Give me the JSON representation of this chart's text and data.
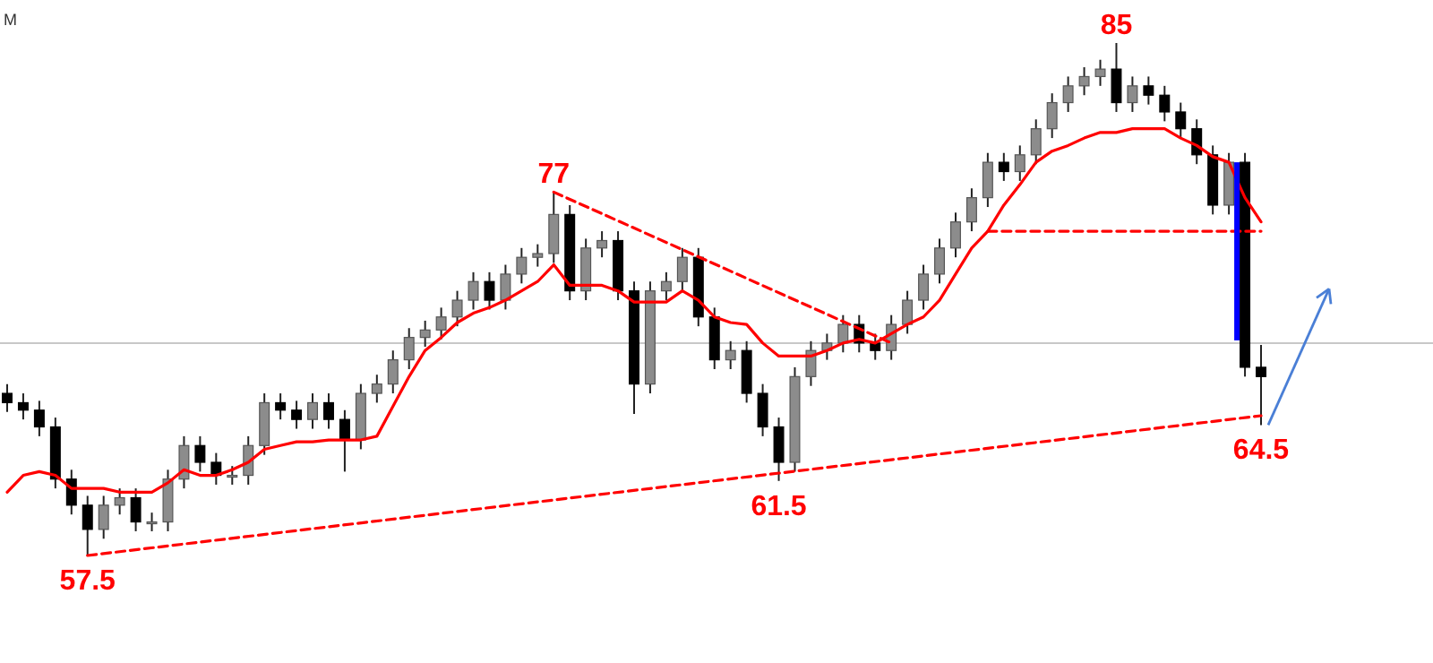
{
  "chart_data": {
    "type": "candlestick",
    "categories": [
      null,
      null,
      null,
      null,
      null,
      null,
      null,
      null,
      null,
      null,
      null,
      null,
      null,
      null,
      null,
      null,
      null,
      null,
      null,
      null,
      null,
      null,
      null,
      null,
      null,
      null,
      null,
      null,
      null,
      null,
      null,
      null,
      null,
      null,
      null,
      null,
      null,
      null,
      null,
      null,
      null,
      null,
      null,
      null,
      null,
      null,
      null,
      null,
      null,
      null,
      null,
      null,
      null,
      null,
      null,
      null,
      null,
      null,
      null,
      null,
      null,
      null,
      null,
      null,
      null,
      null,
      null,
      null,
      null,
      null,
      null,
      null,
      null,
      null,
      null,
      null,
      null,
      null,
      null
    ],
    "ohlc": [
      [
        66.2,
        66.7,
        65.2,
        65.7
      ],
      [
        65.7,
        66.2,
        64.8,
        65.3
      ],
      [
        65.3,
        65.8,
        63.9,
        64.4
      ],
      [
        64.4,
        64.9,
        61.1,
        61.6
      ],
      [
        61.6,
        62.1,
        59.7,
        60.2
      ],
      [
        60.2,
        60.7,
        57.5,
        58.9
      ],
      [
        58.9,
        60.7,
        58.4,
        60.2
      ],
      [
        60.2,
        61.1,
        59.7,
        60.6
      ],
      [
        60.6,
        61.1,
        58.8,
        59.3
      ],
      [
        59.3,
        59.8,
        58.8,
        59.3
      ],
      [
        59.3,
        62.1,
        58.8,
        61.6
      ],
      [
        61.6,
        63.9,
        61.1,
        63.4
      ],
      [
        63.4,
        63.9,
        62.0,
        62.5
      ],
      [
        62.5,
        63.0,
        61.3,
        61.8
      ],
      [
        61.8,
        62.3,
        61.3,
        61.8
      ],
      [
        61.8,
        63.9,
        61.3,
        63.4
      ],
      [
        63.4,
        66.2,
        62.9,
        65.7
      ],
      [
        65.7,
        66.2,
        64.8,
        65.3
      ],
      [
        65.3,
        65.8,
        64.3,
        64.8
      ],
      [
        64.8,
        66.2,
        64.3,
        65.7
      ],
      [
        65.7,
        66.2,
        64.3,
        64.8
      ],
      [
        64.8,
        65.3,
        62.0,
        63.7
      ],
      [
        63.7,
        66.7,
        63.2,
        66.2
      ],
      [
        66.2,
        67.2,
        65.7,
        66.7
      ],
      [
        66.7,
        68.5,
        66.2,
        68.0
      ],
      [
        68.0,
        69.7,
        67.5,
        69.2
      ],
      [
        69.2,
        70.1,
        68.7,
        69.6
      ],
      [
        69.6,
        70.8,
        69.1,
        70.3
      ],
      [
        70.3,
        71.7,
        69.8,
        71.2
      ],
      [
        71.2,
        72.7,
        70.7,
        72.2
      ],
      [
        72.2,
        72.7,
        70.7,
        71.2
      ],
      [
        71.2,
        73.1,
        70.7,
        72.6
      ],
      [
        72.6,
        74.0,
        72.1,
        73.5
      ],
      [
        73.5,
        74.2,
        73.0,
        73.7
      ],
      [
        73.7,
        77,
        73.2,
        75.8
      ],
      [
        75.8,
        76.3,
        71.2,
        71.7
      ],
      [
        71.7,
        74.5,
        71.2,
        74.0
      ],
      [
        74.0,
        74.9,
        73.5,
        74.4
      ],
      [
        74.4,
        74.9,
        71.2,
        71.7
      ],
      [
        71.7,
        72.2,
        65.1,
        66.7
      ],
      [
        66.7,
        72.2,
        66.2,
        71.7
      ],
      [
        71.7,
        72.7,
        71.2,
        72.2
      ],
      [
        72.2,
        74.0,
        71.7,
        73.5
      ],
      [
        73.5,
        74.0,
        69.8,
        70.3
      ],
      [
        70.3,
        70.8,
        67.5,
        68.0
      ],
      [
        68.0,
        69.0,
        67.5,
        68.5
      ],
      [
        68.5,
        69.0,
        65.7,
        66.2
      ],
      [
        66.2,
        66.7,
        63.9,
        64.4
      ],
      [
        64.4,
        64.9,
        61.5,
        62.5
      ],
      [
        62.5,
        67.6,
        62.0,
        67.1
      ],
      [
        67.1,
        69.0,
        66.6,
        68.5
      ],
      [
        68.5,
        69.4,
        68.0,
        68.9
      ],
      [
        68.9,
        70.4,
        68.4,
        69.9
      ],
      [
        69.9,
        70.4,
        68.4,
        68.9
      ],
      [
        68.9,
        69.4,
        68.0,
        68.5
      ],
      [
        68.5,
        70.4,
        68.0,
        69.9
      ],
      [
        69.9,
        71.7,
        69.4,
        71.2
      ],
      [
        71.2,
        73.1,
        70.7,
        72.6
      ],
      [
        72.6,
        74.5,
        72.1,
        74.0
      ],
      [
        74.0,
        75.9,
        73.5,
        75.4
      ],
      [
        75.4,
        77.2,
        74.9,
        76.7
      ],
      [
        76.7,
        79.1,
        76.2,
        78.6
      ],
      [
        78.6,
        79.1,
        77.6,
        78.1
      ],
      [
        78.1,
        79.5,
        77.6,
        79.0
      ],
      [
        79.0,
        80.9,
        78.5,
        80.4
      ],
      [
        80.4,
        82.3,
        79.9,
        81.8
      ],
      [
        81.8,
        83.2,
        81.3,
        82.7
      ],
      [
        82.7,
        83.7,
        82.2,
        83.2
      ],
      [
        83.2,
        84.1,
        82.7,
        83.6
      ],
      [
        83.6,
        85,
        81.3,
        81.8
      ],
      [
        81.8,
        83.2,
        81.3,
        82.7
      ],
      [
        82.7,
        83.2,
        81.7,
        82.2
      ],
      [
        82.2,
        82.7,
        80.8,
        81.3
      ],
      [
        81.3,
        81.8,
        79.9,
        80.4
      ],
      [
        80.4,
        80.9,
        78.5,
        79.0
      ],
      [
        79.0,
        79.5,
        75.8,
        76.3
      ],
      [
        76.3,
        79.1,
        75.8,
        78.6
      ],
      [
        78.6,
        79.1,
        67.1,
        67.6
      ],
      [
        67.6,
        68.8,
        64.5,
        67.1
      ]
    ],
    "series": [
      {
        "type": "line",
        "color": "#ff0000",
        "line_style": "solid",
        "values": [
          60.9,
          61.8,
          62.0,
          61.8,
          61.1,
          61.1,
          61.1,
          60.9,
          60.9,
          60.9,
          61.4,
          62.1,
          61.8,
          61.8,
          62.1,
          62.5,
          63.2,
          63.4,
          63.6,
          63.6,
          63.7,
          63.7,
          63.7,
          63.9,
          65.5,
          67.1,
          68.5,
          69.2,
          70.0,
          70.5,
          70.8,
          71.2,
          71.7,
          72.2,
          73.1,
          72.0,
          72.0,
          72.0,
          71.7,
          71.1,
          71.1,
          71.1,
          71.7,
          71.2,
          70.3,
          70.0,
          69.9,
          68.9,
          68.2,
          68.2,
          68.2,
          68.5,
          68.9,
          69.1,
          68.9,
          69.4,
          69.9,
          70.3,
          71.2,
          72.6,
          74.0,
          74.9,
          76.3,
          77.4,
          78.6,
          79.2,
          79.5,
          79.9,
          80.2,
          80.2,
          80.4,
          80.4,
          80.4,
          79.9,
          79.5,
          78.9,
          78.6,
          76.7,
          75.4
        ]
      },
      {
        "type": "line",
        "color": "#ff0000",
        "line_style": "dashed",
        "values": [
          null,
          null,
          null,
          null,
          null,
          57.5,
          null,
          null,
          null,
          null,
          null,
          null,
          null,
          null,
          null,
          null,
          null,
          null,
          null,
          null,
          null,
          null,
          null,
          null,
          null,
          null,
          null,
          null,
          null,
          null,
          null,
          null,
          null,
          null,
          null,
          null,
          null,
          null,
          null,
          null,
          null,
          null,
          null,
          null,
          null,
          null,
          null,
          null,
          null,
          null,
          null,
          null,
          null,
          null,
          null,
          null,
          null,
          null,
          null,
          null,
          null,
          null,
          null,
          null,
          null,
          null,
          null,
          null,
          null,
          null,
          null,
          null,
          null,
          null,
          null,
          null,
          null,
          null,
          65.0
        ]
      },
      {
        "type": "line",
        "color": "#ff0000",
        "line_style": "dashed",
        "values": [
          null,
          null,
          null,
          null,
          null,
          null,
          null,
          null,
          null,
          null,
          null,
          null,
          null,
          null,
          null,
          null,
          null,
          null,
          null,
          null,
          null,
          null,
          null,
          null,
          null,
          null,
          null,
          null,
          null,
          null,
          null,
          null,
          null,
          null,
          77,
          null,
          null,
          null,
          null,
          null,
          null,
          null,
          null,
          null,
          null,
          null,
          null,
          null,
          null,
          null,
          null,
          null,
          null,
          null,
          null,
          68.9,
          null,
          null,
          null,
          null,
          null,
          null,
          null,
          null,
          null,
          null,
          null,
          null,
          null,
          null,
          null,
          null,
          null,
          null,
          null,
          null,
          null,
          null,
          null
        ]
      },
      {
        "type": "line",
        "color": "#ff0000",
        "line_style": "dashed",
        "values": [
          null,
          null,
          null,
          null,
          null,
          null,
          null,
          null,
          null,
          null,
          null,
          null,
          null,
          null,
          null,
          null,
          null,
          null,
          null,
          null,
          null,
          null,
          null,
          null,
          null,
          null,
          null,
          null,
          null,
          null,
          null,
          null,
          null,
          null,
          null,
          null,
          null,
          null,
          null,
          null,
          null,
          null,
          null,
          null,
          null,
          null,
          null,
          null,
          null,
          null,
          null,
          null,
          null,
          null,
          null,
          null,
          null,
          null,
          null,
          null,
          null,
          74.9,
          null,
          null,
          null,
          null,
          null,
          null,
          null,
          null,
          null,
          null,
          null,
          null,
          null,
          null,
          null,
          null,
          74.9
        ]
      }
    ],
    "ref_lines": [
      {
        "axis": "y",
        "value": 68.9,
        "color": "#c8c8c8"
      }
    ],
    "annotations": [
      "M",
      {
        "text": "57.5",
        "y": 57.5
      },
      {
        "text": "77",
        "y": 77
      },
      {
        "text": "61.5",
        "y": 61.5
      },
      {
        "text": "85",
        "y": 85
      },
      {
        "text": "64.5",
        "y": 64.5
      }
    ]
  }
}
